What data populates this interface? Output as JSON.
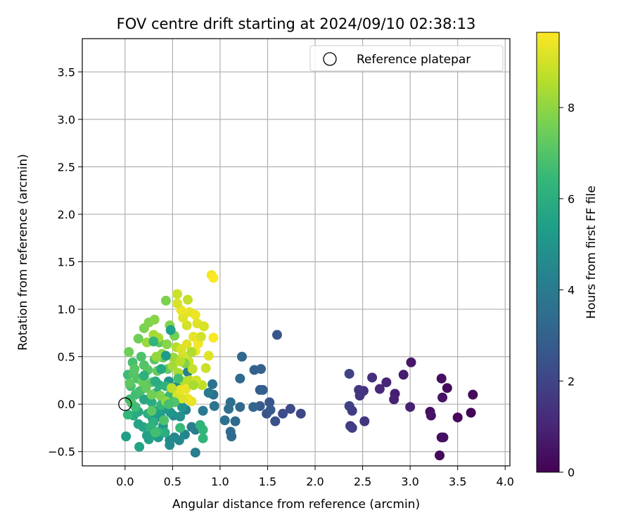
{
  "chart_data": {
    "type": "scatter",
    "title": "FOV centre drift starting at 2024/09/10 02:38:13",
    "xlabel": "Angular distance from reference (arcmin)",
    "ylabel": "Rotation from reference (arcmin)",
    "xlim": [
      -0.45,
      4.05
    ],
    "ylim": [
      -0.65,
      3.85
    ],
    "xticks": [
      "0.0",
      "0.5",
      "1.0",
      "1.5",
      "2.0",
      "2.5",
      "3.0",
      "3.5",
      "4.0"
    ],
    "yticks": [
      "−0.5",
      "0.0",
      "0.5",
      "1.0",
      "1.5",
      "2.0",
      "2.5",
      "3.0",
      "3.5"
    ],
    "grid": true,
    "legend": {
      "placement": "top-right",
      "entries": [
        "Reference platepar"
      ]
    },
    "reference_point": {
      "x": 0,
      "y": 0
    },
    "colorbar": {
      "label": "Hours from first FF file",
      "range": [
        0,
        9.65
      ],
      "ticks": [
        "0",
        "2",
        "4",
        "6",
        "8"
      ],
      "colormap": "viridis",
      "colormap_stops": [
        "#440154",
        "#482878",
        "#3e4989",
        "#31688e",
        "#26828e",
        "#1f9e89",
        "#35b779",
        "#6ece58",
        "#b5de2b",
        "#fde725"
      ]
    },
    "series": [
      {
        "points": [
          [
            3.31,
            -0.54,
            0.2
          ],
          [
            3.33,
            -0.35,
            0.3
          ],
          [
            3.35,
            -0.35,
            0.4
          ],
          [
            3.5,
            -0.14,
            0.2
          ],
          [
            3.64,
            -0.09,
            0.1
          ],
          [
            3.66,
            0.1,
            0.2
          ],
          [
            3.39,
            0.17,
            0.3
          ],
          [
            3.33,
            0.27,
            0.4
          ],
          [
            3.34,
            0.07,
            0.5
          ],
          [
            3.21,
            -0.08,
            0.4
          ],
          [
            3.22,
            -0.12,
            0.5
          ],
          [
            3.01,
            0.44,
            0.6
          ],
          [
            2.93,
            0.31,
            0.8
          ],
          [
            3.0,
            -0.03,
            0.9
          ],
          [
            2.84,
            0.11,
            0.8
          ],
          [
            2.83,
            0.05,
            0.9
          ],
          [
            2.75,
            0.23,
            1.0
          ],
          [
            2.68,
            0.16,
            1.1
          ],
          [
            2.6,
            0.28,
            1.3
          ],
          [
            2.52,
            -0.18,
            1.5
          ],
          [
            2.51,
            0.14,
            1.4
          ],
          [
            2.46,
            0.15,
            1.6
          ],
          [
            2.47,
            0.09,
            1.5
          ],
          [
            2.37,
            -0.23,
            1.7
          ],
          [
            2.39,
            -0.25,
            1.8
          ],
          [
            2.39,
            -0.07,
            1.7
          ],
          [
            2.36,
            -0.02,
            1.9
          ],
          [
            2.36,
            0.32,
            1.9
          ],
          [
            1.85,
            -0.1,
            2.1
          ],
          [
            1.74,
            -0.05,
            2.2
          ],
          [
            1.66,
            -0.1,
            2.3
          ],
          [
            1.58,
            -0.18,
            2.4
          ],
          [
            1.6,
            0.73,
            2.6
          ],
          [
            1.49,
            -0.1,
            2.5
          ],
          [
            1.52,
            0.02,
            2.6
          ],
          [
            1.53,
            -0.06,
            2.7
          ],
          [
            1.42,
            0.15,
            2.8
          ],
          [
            1.45,
            0.15,
            2.9
          ],
          [
            1.43,
            0.37,
            3.0
          ],
          [
            1.42,
            -0.02,
            2.8
          ],
          [
            1.36,
            0.36,
            3.0
          ],
          [
            1.35,
            -0.03,
            3.1
          ],
          [
            1.23,
            0.5,
            3.2
          ],
          [
            1.21,
            0.27,
            3.3
          ],
          [
            1.21,
            -0.03,
            3.2
          ],
          [
            1.12,
            -0.34,
            3.4
          ],
          [
            1.11,
            -0.29,
            3.4
          ],
          [
            1.11,
            0.02,
            3.5
          ],
          [
            1.09,
            -0.05,
            3.5
          ],
          [
            1.16,
            -0.18,
            3.3
          ],
          [
            1.05,
            -0.17,
            3.6
          ],
          [
            0.93,
            0.1,
            3.6
          ],
          [
            0.92,
            0.21,
            3.7
          ],
          [
            0.94,
            -0.02,
            3.8
          ],
          [
            0.88,
            0.12,
            3.9
          ],
          [
            0.82,
            -0.07,
            3.9
          ],
          [
            0.74,
            -0.27,
            4.0
          ],
          [
            0.7,
            -0.24,
            4.1
          ],
          [
            0.74,
            -0.51,
            4.1
          ],
          [
            0.66,
            0.34,
            4.2
          ],
          [
            0.64,
            -0.06,
            4.3
          ],
          [
            0.63,
            -0.32,
            4.4
          ],
          [
            0.57,
            -0.38,
            4.5
          ],
          [
            0.52,
            -0.35,
            4.5
          ],
          [
            0.47,
            -0.43,
            4.7
          ],
          [
            0.47,
            -0.38,
            4.6
          ],
          [
            0.51,
            -0.12,
            4.6
          ],
          [
            0.55,
            0.19,
            4.8
          ],
          [
            0.58,
            -0.13,
            4.9
          ],
          [
            0.6,
            -0.03,
            5.0
          ],
          [
            0.48,
            -0.09,
            5.0
          ],
          [
            0.46,
            0.24,
            4.9
          ],
          [
            0.4,
            -0.23,
            5.1
          ],
          [
            0.35,
            -0.35,
            5.2
          ],
          [
            0.38,
            -0.14,
            5.3
          ],
          [
            0.42,
            -0.05,
            5.2
          ],
          [
            0.29,
            -0.15,
            5.3
          ],
          [
            0.33,
            -0.07,
            5.4
          ],
          [
            0.25,
            -0.37,
            5.5
          ],
          [
            0.23,
            -0.33,
            5.5
          ],
          [
            0.15,
            -0.45,
            5.6
          ],
          [
            0.19,
            -0.24,
            5.7
          ],
          [
            0.14,
            -0.21,
            5.6
          ],
          [
            0.14,
            -0.08,
            5.8
          ],
          [
            0.09,
            -0.12,
            5.9
          ],
          [
            0.15,
            0.13,
            5.7
          ],
          [
            0.2,
            0.05,
            5.8
          ],
          [
            0.28,
            0.02,
            5.9
          ],
          [
            0.33,
            0.12,
            6.0
          ],
          [
            0.3,
            -0.19,
            6.1
          ],
          [
            0.36,
            0.2,
            6.1
          ],
          [
            0.43,
            0.19,
            6.2
          ],
          [
            0.42,
            -0.3,
            6.0
          ],
          [
            0.4,
            0.05,
            6.3
          ],
          [
            0.01,
            -0.34,
            5.4
          ],
          [
            0.27,
            -0.24,
            6.2
          ],
          [
            0.34,
            -0.29,
            6.4
          ],
          [
            0.38,
            -0.01,
            6.4
          ],
          [
            0.58,
            -0.25,
            6.5
          ],
          [
            0.47,
            0.09,
            6.5
          ],
          [
            0.05,
            0.05,
            6.6
          ],
          [
            0.03,
            0.31,
            6.6
          ],
          [
            0.06,
            0.19,
            6.7
          ],
          [
            0.08,
            0.44,
            6.8
          ],
          [
            0.11,
            0.1,
            6.7
          ],
          [
            0.13,
            0.27,
            6.9
          ],
          [
            0.16,
            0.14,
            6.8
          ],
          [
            0.2,
            0.41,
            7.0
          ],
          [
            0.17,
            0.5,
            6.9
          ],
          [
            0.09,
            0.32,
            7.0
          ],
          [
            0.24,
            0.36,
            7.1
          ],
          [
            0.28,
            0.23,
            7.2
          ],
          [
            0.31,
            0.47,
            7.1
          ],
          [
            0.34,
            0.35,
            7.3
          ],
          [
            0.36,
            0.65,
            7.2
          ],
          [
            0.4,
            0.49,
            7.4
          ],
          [
            0.45,
            0.37,
            7.3
          ],
          [
            0.82,
            -0.36,
            6.3
          ],
          [
            0.82,
            -0.27,
            6.4
          ],
          [
            0.79,
            -0.22,
            6.2
          ],
          [
            0.04,
            0.55,
            7.5
          ],
          [
            0.14,
            0.69,
            7.5
          ],
          [
            0.2,
            0.8,
            7.7
          ],
          [
            0.25,
            0.86,
            7.8
          ],
          [
            0.31,
            0.89,
            7.9
          ],
          [
            0.43,
            1.09,
            7.7
          ],
          [
            0.47,
            0.83,
            7.8
          ],
          [
            0.52,
            0.72,
            7.6
          ],
          [
            0.44,
            0.63,
            7.9
          ],
          [
            0.39,
            0.53,
            8.0
          ],
          [
            0.33,
            0.5,
            8.1
          ],
          [
            0.23,
            0.65,
            8.2
          ],
          [
            0.3,
            0.73,
            8.3
          ],
          [
            0.35,
            0.7,
            8.4
          ],
          [
            0.51,
            0.49,
            8.2
          ],
          [
            0.54,
            0.6,
            8.5
          ],
          [
            0.56,
            0.33,
            8.4
          ],
          [
            0.62,
            0.24,
            8.6
          ],
          [
            0.68,
            0.25,
            8.7
          ],
          [
            0.71,
            0.37,
            8.8
          ],
          [
            0.67,
            0.45,
            8.9
          ],
          [
            0.61,
            0.51,
            9.0
          ],
          [
            0.59,
            0.58,
            9.1
          ],
          [
            0.65,
            0.63,
            9.2
          ],
          [
            0.72,
            0.71,
            9.3
          ],
          [
            0.65,
            0.83,
            9.0
          ],
          [
            0.61,
            0.91,
            9.2
          ],
          [
            0.59,
            0.99,
            9.4
          ],
          [
            0.55,
            1.06,
            9.1
          ],
          [
            0.55,
            1.16,
            8.9
          ],
          [
            0.66,
            1.1,
            8.8
          ],
          [
            0.68,
            0.97,
            9.3
          ],
          [
            0.74,
            0.94,
            9.4
          ],
          [
            0.76,
            0.85,
            9.2
          ],
          [
            0.77,
            0.64,
            9.5
          ],
          [
            0.74,
            0.56,
            9.5
          ],
          [
            0.8,
            0.71,
            9.0
          ],
          [
            0.83,
            0.82,
            9.1
          ],
          [
            0.81,
            0.2,
            8.7
          ],
          [
            0.85,
            0.38,
            8.9
          ],
          [
            0.88,
            0.51,
            9.2
          ],
          [
            0.93,
            0.7,
            9.6
          ],
          [
            0.91,
            1.36,
            9.5
          ],
          [
            0.93,
            1.33,
            9.6
          ],
          [
            0.7,
            0.03,
            9.3
          ],
          [
            0.66,
            0.06,
            9.4
          ],
          [
            0.6,
            0.06,
            9.2
          ],
          [
            0.55,
            0.1,
            9.1
          ],
          [
            0.58,
            0.15,
            9.3
          ],
          [
            0.64,
            0.16,
            9.4
          ],
          [
            0.49,
            0.17,
            8.7
          ],
          [
            0.43,
            0.03,
            8.1
          ],
          [
            0.37,
            0.09,
            7.8
          ],
          [
            0.28,
            0.1,
            7.6
          ],
          [
            0.22,
            0.17,
            7.3
          ],
          [
            0.18,
            0.24,
            7.4
          ],
          [
            0.1,
            0.37,
            7.1
          ],
          [
            0.05,
            0.22,
            7.2
          ],
          [
            0.03,
            -0.11,
            6.4
          ],
          [
            0.07,
            0.01,
            6.9
          ],
          [
            0.11,
            -0.03,
            6.6
          ],
          [
            0.24,
            -0.1,
            6.0
          ],
          [
            0.2,
            0.3,
            6.1
          ],
          [
            0.32,
            0.24,
            5.9
          ],
          [
            0.38,
            0.37,
            5.8
          ],
          [
            0.43,
            0.51,
            5.3
          ],
          [
            0.48,
            0.78,
            5.5
          ],
          [
            0.3,
            0.66,
            6.3
          ],
          [
            0.56,
            0.27,
            6.7
          ],
          [
            0.52,
            0.02,
            7.0
          ],
          [
            0.46,
            0.0,
            6.8
          ],
          [
            0.41,
            -0.17,
            6.9
          ],
          [
            0.32,
            -0.3,
            6.7
          ],
          [
            0.28,
            -0.07,
            7.2
          ],
          [
            0.63,
            0.43,
            7.8
          ],
          [
            0.5,
            0.4,
            8.3
          ],
          [
            0.58,
            0.45,
            8.6
          ],
          [
            0.7,
            0.55,
            8.5
          ],
          [
            0.75,
            0.25,
            9.0
          ],
          [
            0.72,
            0.2,
            8.4
          ]
        ]
      }
    ]
  }
}
